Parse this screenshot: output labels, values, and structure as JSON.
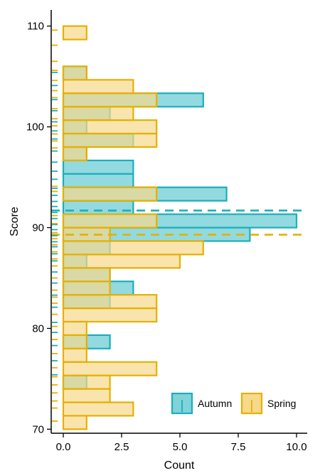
{
  "chart_data": {
    "type": "bar",
    "orientation": "horizontal",
    "xlabel": "Count",
    "ylabel": "Score",
    "xlim": [
      0,
      10.4
    ],
    "ylim": [
      69.6,
      111.6
    ],
    "xticks": [
      0,
      2.5,
      5,
      7.5,
      10
    ],
    "xtick_labels": [
      "0.0",
      "2.5",
      "5.0",
      "7.5",
      "10.0"
    ],
    "yticks": [
      70,
      80,
      90,
      100,
      110
    ],
    "ytick_labels": [
      "70",
      "80",
      "90",
      "100",
      "110"
    ],
    "bin_width": 1.3333,
    "bins": [
      70.6667,
      72.0,
      73.3333,
      74.6667,
      76.0,
      77.3333,
      78.6667,
      80.0,
      81.3333,
      82.6667,
      84.0,
      85.3333,
      86.6667,
      88.0,
      89.3333,
      90.6667,
      92.0,
      93.3333,
      94.6667,
      96.0,
      97.3333,
      98.6667,
      100.0,
      101.3333,
      102.6667,
      104.0,
      105.3333,
      106.6667,
      108.0,
      109.3333
    ],
    "series": [
      {
        "name": "Autumn",
        "color": "#1aafbb",
        "fill": "#7fd3d9",
        "values": [
          0,
          0,
          0,
          1,
          0,
          0,
          2,
          0,
          0,
          2,
          3,
          2,
          1,
          2,
          8,
          10,
          3,
          7,
          3,
          3,
          1,
          3,
          1,
          2,
          6,
          0,
          1,
          0,
          0,
          0
        ],
        "mean": 91.7
      },
      {
        "name": "Spring",
        "color": "#e6b000",
        "fill": "#f6d98c",
        "values": [
          1,
          3,
          2,
          2,
          4,
          1,
          1,
          1,
          4,
          4,
          2,
          2,
          5,
          6,
          2,
          4,
          0,
          4,
          0,
          0,
          1,
          4,
          4,
          3,
          4,
          3,
          1,
          0,
          0,
          1
        ],
        "mean": 89.3
      }
    ],
    "rug": {
      "Autumn": [
        75.4,
        76.8,
        78.3,
        79.6,
        80.6,
        82.1,
        83.3,
        84.5,
        85.6,
        86.7,
        87.4,
        88.1,
        88.6,
        89.2,
        89.8,
        90.3,
        90.9,
        91.5,
        92.1,
        92.6,
        93.2,
        93.9,
        94.8,
        95.6,
        96.5,
        97.6,
        98.8,
        99.6,
        100.5,
        101.6,
        102.7,
        104.1,
        105.4
      ],
      "Spring": [
        70.8,
        72.1,
        72.8,
        73.6,
        74.4,
        75.2,
        76.1,
        77.5,
        78.9,
        80.2,
        81.4,
        82.5,
        83.1,
        83.8,
        85.0,
        86.2,
        86.9,
        87.6,
        88.3,
        88.9,
        89.5,
        90.4,
        91.2,
        93.6,
        94.1,
        97.9,
        98.6,
        99.3,
        100.1,
        100.8,
        101.8,
        102.9,
        103.6,
        104.6,
        105.6,
        106.5,
        108.1,
        109.6
      ]
    },
    "legend": {
      "position": "bottom-right",
      "entries": [
        "Autumn",
        "Spring"
      ]
    },
    "grid": false
  }
}
